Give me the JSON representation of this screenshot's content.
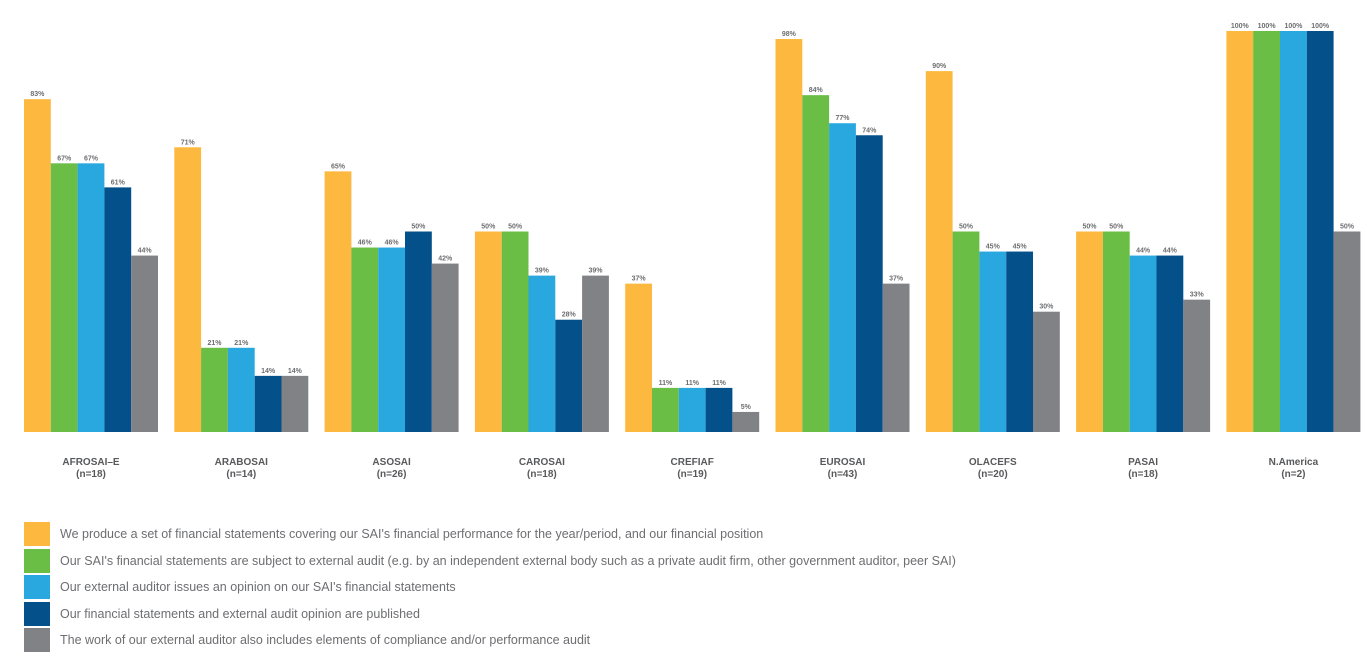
{
  "chart_data": {
    "type": "bar",
    "categories": [
      "AFROSAI–E",
      "ARABOSAI",
      "ASOSAI",
      "CAROSAI",
      "CREFIAF",
      "EUROSAI",
      "OLACEFS",
      "PASAI",
      "N.America"
    ],
    "category_n": [
      "(n=18)",
      "(n=14)",
      "(n=26)",
      "(n=18)",
      "(n=19)",
      "(n=43)",
      "(n=20)",
      "(n=18)",
      "(n=2)"
    ],
    "series": [
      {
        "name": "We produce a set of financial statements covering our SAI's financial performance for the year/period, and our financial position",
        "color": "#fdb93f",
        "values": [
          83,
          71,
          65,
          50,
          37,
          98,
          90,
          50,
          100
        ]
      },
      {
        "name": "Our SAI's financial statements are subject to external audit (e.g. by an independent external body such as a private audit firm, other government auditor, peer SAI)",
        "color": "#6abd45",
        "values": [
          67,
          21,
          46,
          50,
          11,
          84,
          50,
          50,
          100
        ]
      },
      {
        "name": "Our external auditor issues an opinion on our SAI's financial statements",
        "color": "#29a8e0",
        "values": [
          67,
          21,
          46,
          39,
          11,
          77,
          45,
          44,
          100
        ]
      },
      {
        "name": "Our financial statements and external audit opinion are published",
        "color": "#04508a",
        "values": [
          61,
          14,
          50,
          28,
          11,
          74,
          45,
          44,
          100
        ]
      },
      {
        "name": "The work of our external auditor also includes elements of compliance and/or performance audit",
        "color": "#808285",
        "values": [
          44,
          14,
          42,
          39,
          5,
          37,
          30,
          33,
          50
        ]
      }
    ],
    "value_suffix": "%",
    "ylim": [
      0,
      100
    ],
    "grid": false,
    "legend": "bottom"
  }
}
